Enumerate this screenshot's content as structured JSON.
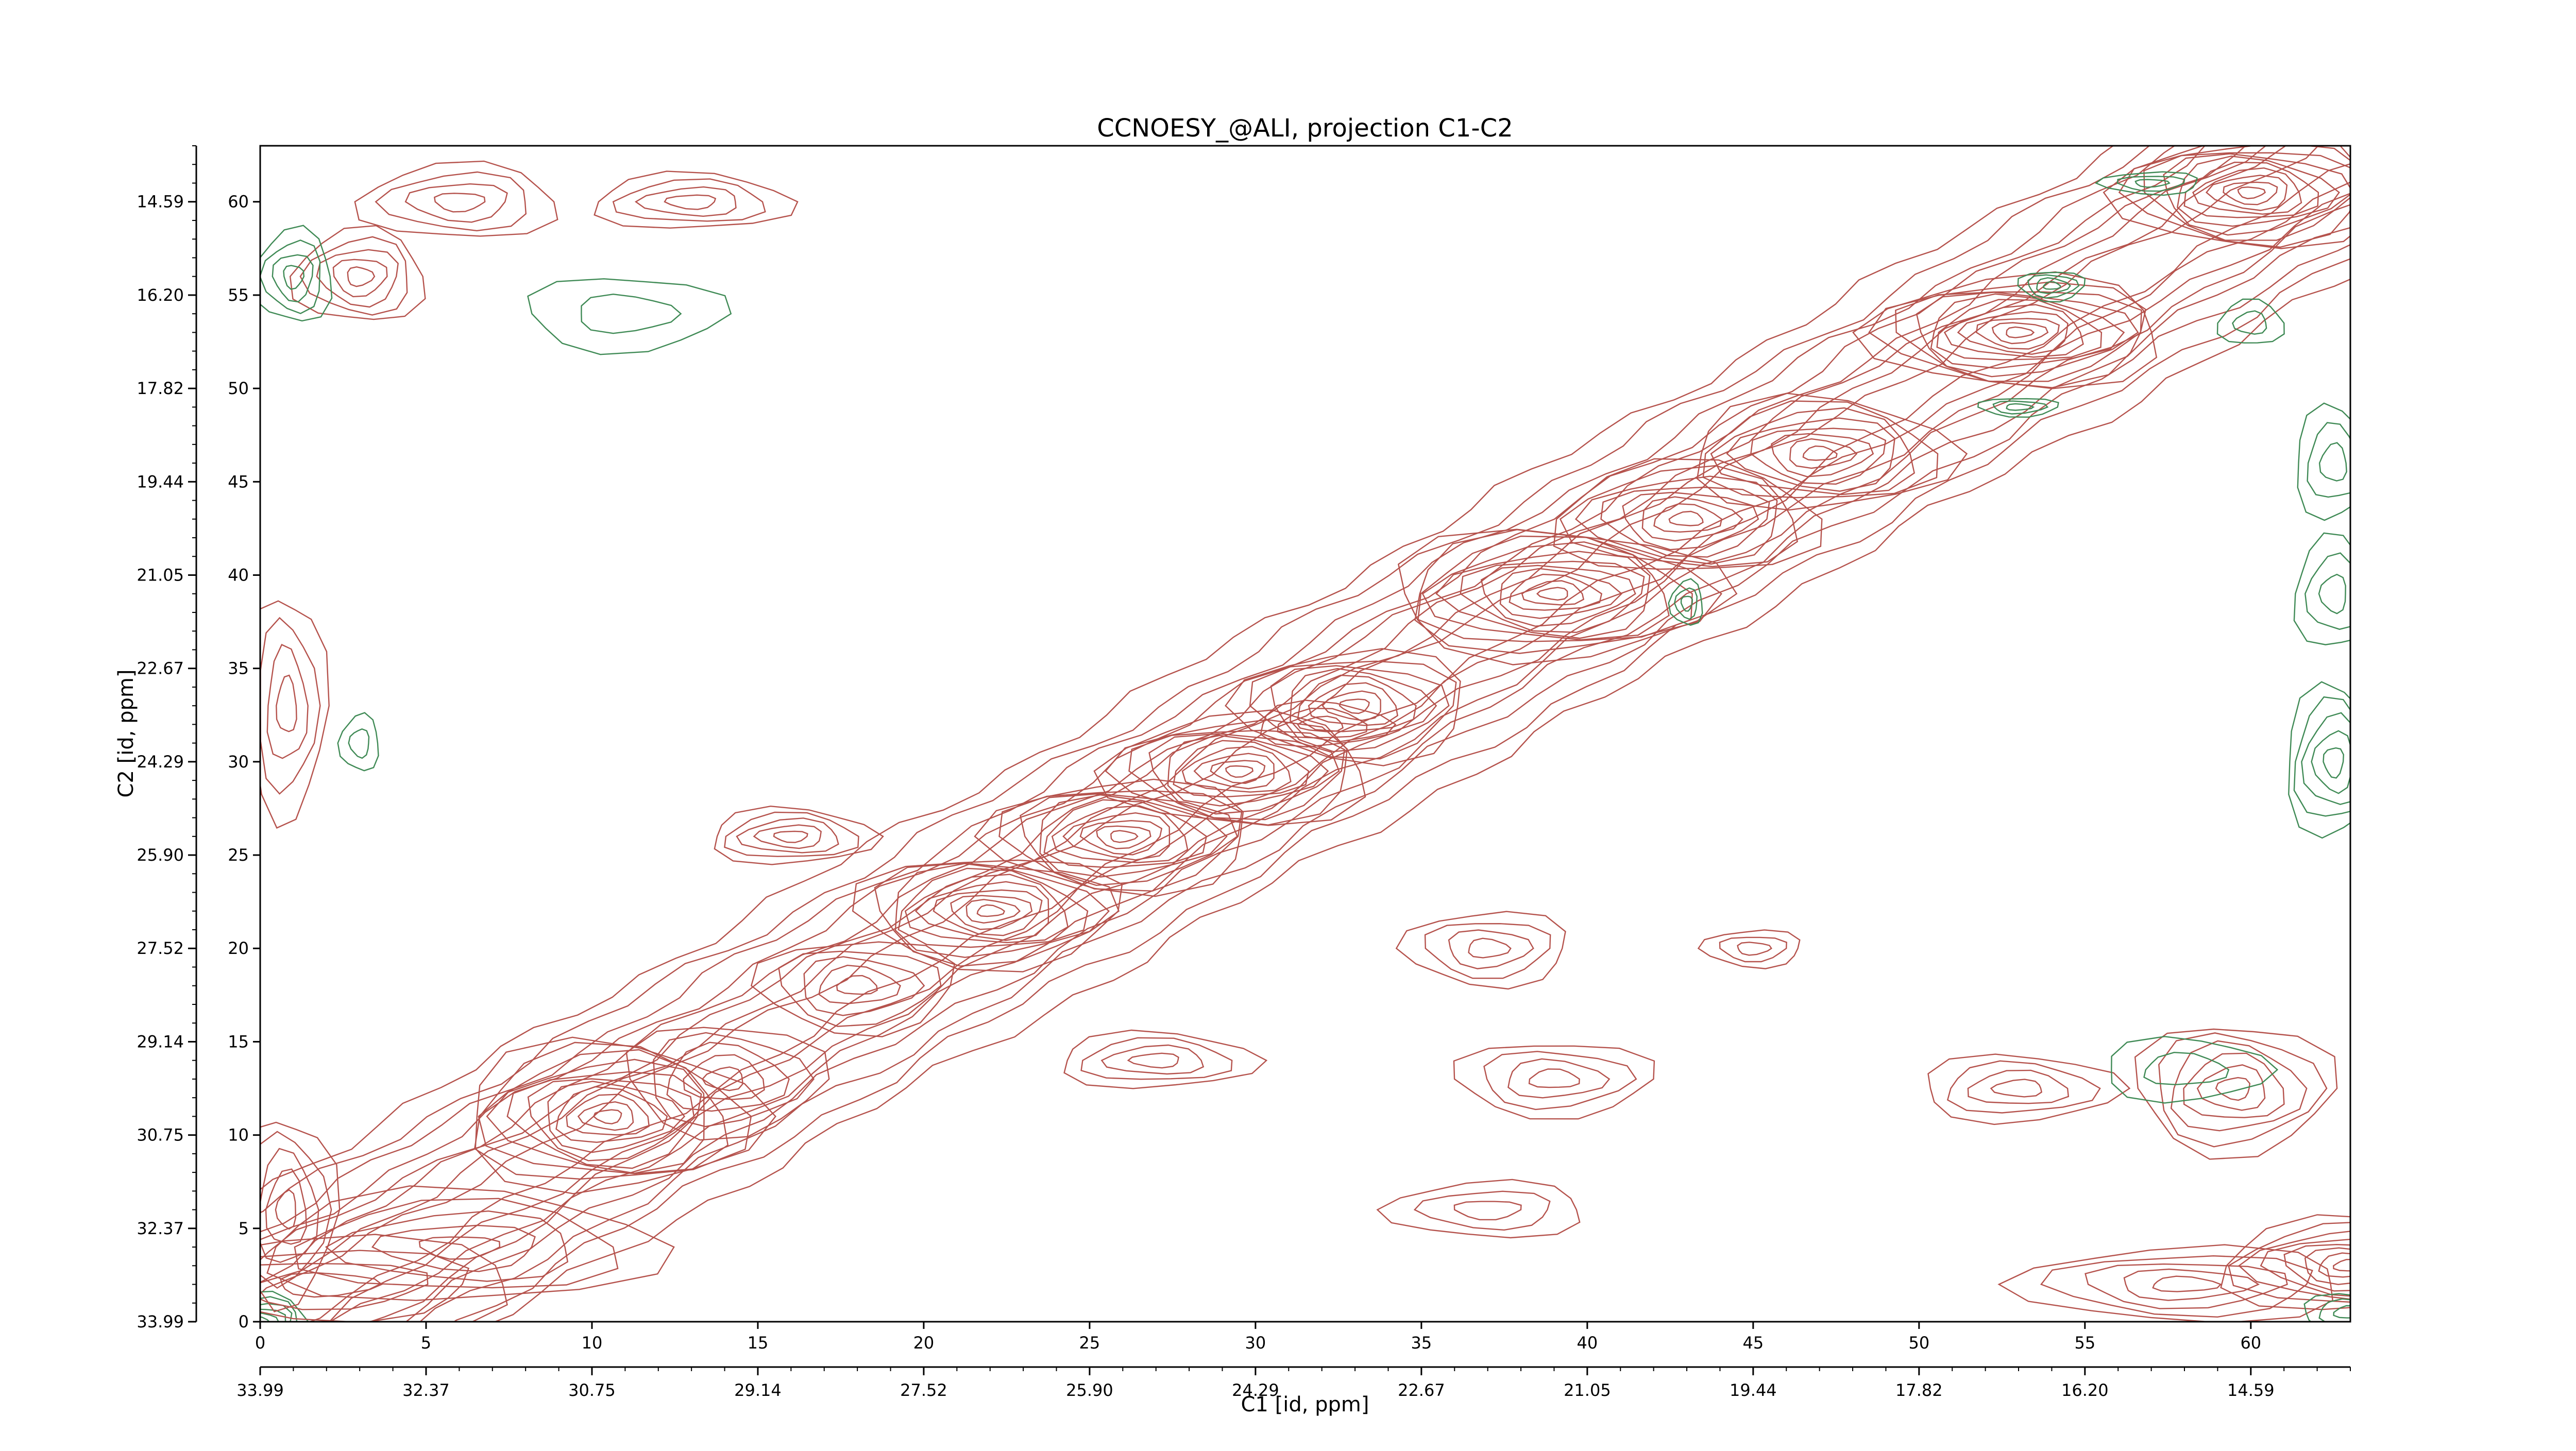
{
  "chart_data": {
    "type": "contour",
    "title": "CCNOESY_@ALI, projection C1-C2",
    "xlabel": "C1 [id, ppm]",
    "ylabel": "C2 [id, ppm]",
    "x_index_range": [
      0,
      63
    ],
    "y_index_range": [
      0,
      63
    ],
    "x_index_ticks": [
      "0",
      "5",
      "10",
      "15",
      "20",
      "25",
      "30",
      "35",
      "40",
      "45",
      "50",
      "55",
      "60"
    ],
    "y_index_ticks": [
      "0",
      "5",
      "10",
      "15",
      "20",
      "25",
      "30",
      "35",
      "40",
      "45",
      "50",
      "55",
      "60"
    ],
    "x_ppm_ticks": [
      "33.99",
      "32.37",
      "30.75",
      "29.14",
      "27.52",
      "25.90",
      "24.29",
      "22.67",
      "21.05",
      "19.44",
      "17.82",
      "16.20",
      "14.59"
    ],
    "y_ppm_ticks": [
      "33.99",
      "32.37",
      "30.75",
      "29.14",
      "27.52",
      "25.90",
      "24.29",
      "22.67",
      "21.05",
      "19.44",
      "17.82",
      "16.20",
      "14.59"
    ],
    "colors": {
      "positive": "#b5524c",
      "negative": "#3f8a55"
    },
    "peaks": [
      {
        "x": 0,
        "y": 0,
        "w": 1.5,
        "h": 1.5,
        "levels": 6,
        "sign": "neg"
      },
      {
        "x": 2,
        "y": 2,
        "w": 6,
        "h": 2.5,
        "levels": 4,
        "sign": "pos"
      },
      {
        "x": 6,
        "y": 4,
        "w": 6,
        "h": 3,
        "levels": 5,
        "sign": "pos"
      },
      {
        "x": 10.5,
        "y": 11,
        "w": 4.5,
        "h": 4,
        "levels": 11,
        "sign": "pos"
      },
      {
        "x": 14,
        "y": 13,
        "w": 3,
        "h": 3,
        "levels": 5,
        "sign": "pos"
      },
      {
        "x": 18,
        "y": 18,
        "w": 3,
        "h": 2.5,
        "levels": 5,
        "sign": "pos"
      },
      {
        "x": 22,
        "y": 22,
        "w": 4,
        "h": 3,
        "levels": 10,
        "sign": "pos"
      },
      {
        "x": 26,
        "y": 26,
        "w": 4,
        "h": 3,
        "levels": 10,
        "sign": "pos"
      },
      {
        "x": 29.5,
        "y": 29.5,
        "w": 4,
        "h": 3,
        "levels": 10,
        "sign": "pos"
      },
      {
        "x": 33,
        "y": 33,
        "w": 3.5,
        "h": 3,
        "levels": 8,
        "sign": "pos"
      },
      {
        "x": 39,
        "y": 39,
        "w": 5,
        "h": 3.5,
        "levels": 11,
        "sign": "pos"
      },
      {
        "x": 43,
        "y": 43,
        "w": 4,
        "h": 3,
        "levels": 8,
        "sign": "pos"
      },
      {
        "x": 47,
        "y": 46.5,
        "w": 4,
        "h": 3,
        "levels": 8,
        "sign": "pos"
      },
      {
        "x": 53,
        "y": 53,
        "w": 4.5,
        "h": 3,
        "levels": 11,
        "sign": "pos"
      },
      {
        "x": 60,
        "y": 60.5,
        "w": 4,
        "h": 3,
        "levels": 10,
        "sign": "pos"
      },
      {
        "x": 16,
        "y": 26,
        "w": 2.5,
        "h": 1.5,
        "levels": 5,
        "sign": "pos"
      },
      {
        "x": 27,
        "y": 14,
        "w": 3,
        "h": 1.5,
        "levels": 4,
        "sign": "pos"
      },
      {
        "x": 32,
        "y": 32,
        "w": 2,
        "h": 1.2,
        "levels": 3,
        "sign": "pos"
      },
      {
        "x": 39,
        "y": 13,
        "w": 3,
        "h": 2,
        "levels": 4,
        "sign": "pos"
      },
      {
        "x": 37,
        "y": 20,
        "w": 2.5,
        "h": 2,
        "levels": 4,
        "sign": "pos"
      },
      {
        "x": 45,
        "y": 20,
        "w": 1.5,
        "h": 1,
        "levels": 3,
        "sign": "pos"
      },
      {
        "x": 37,
        "y": 6,
        "w": 3,
        "h": 1.5,
        "levels": 3,
        "sign": "pos"
      },
      {
        "x": 59.5,
        "y": 12.5,
        "w": 3,
        "h": 3.5,
        "levels": 6,
        "sign": "pos"
      },
      {
        "x": 53,
        "y": 12.5,
        "w": 3,
        "h": 1.8,
        "levels": 4,
        "sign": "pos"
      },
      {
        "x": 63,
        "y": 3,
        "w": 4,
        "h": 2.5,
        "levels": 8,
        "sign": "pos"
      },
      {
        "x": 58,
        "y": 2,
        "w": 5,
        "h": 2,
        "levels": 5,
        "sign": "pos"
      },
      {
        "x": 3,
        "y": 56,
        "w": 2,
        "h": 2.5,
        "levels": 5,
        "sign": "pos"
      },
      {
        "x": 6,
        "y": 60,
        "w": 3,
        "h": 2,
        "levels": 4,
        "sign": "pos"
      },
      {
        "x": 13,
        "y": 60,
        "w": 3,
        "h": 1.5,
        "levels": 4,
        "sign": "pos"
      },
      {
        "x": 0.8,
        "y": 6,
        "w": 1.5,
        "h": 5,
        "levels": 5,
        "sign": "pos"
      },
      {
        "x": 0.8,
        "y": 33,
        "w": 1.2,
        "h": 6,
        "levels": 4,
        "sign": "pos"
      },
      {
        "x": 58,
        "y": 13.5,
        "w": 2.5,
        "h": 1.7,
        "levels": 2,
        "sign": "neg"
      },
      {
        "x": 11,
        "y": 54,
        "w": 3,
        "h": 2,
        "levels": 2,
        "sign": "neg"
      },
      {
        "x": 1,
        "y": 56,
        "w": 1.2,
        "h": 2.5,
        "levels": 4,
        "sign": "neg"
      },
      {
        "x": 62.5,
        "y": 30,
        "w": 1.5,
        "h": 4,
        "levels": 5,
        "sign": "neg"
      },
      {
        "x": 62.5,
        "y": 39,
        "w": 1.2,
        "h": 3,
        "levels": 3,
        "sign": "neg"
      },
      {
        "x": 62.5,
        "y": 46,
        "w": 1.2,
        "h": 3,
        "levels": 3,
        "sign": "neg"
      },
      {
        "x": 54,
        "y": 55.5,
        "w": 1,
        "h": 0.8,
        "levels": 4,
        "sign": "neg"
      },
      {
        "x": 53,
        "y": 49,
        "w": 1.2,
        "h": 0.5,
        "levels": 3,
        "sign": "neg"
      },
      {
        "x": 57,
        "y": 61,
        "w": 1.5,
        "h": 0.6,
        "levels": 3,
        "sign": "neg"
      },
      {
        "x": 43,
        "y": 38.5,
        "w": 0.5,
        "h": 1.2,
        "levels": 3,
        "sign": "neg"
      },
      {
        "x": 3,
        "y": 31,
        "w": 0.6,
        "h": 1.5,
        "levels": 2,
        "sign": "neg"
      },
      {
        "x": 60,
        "y": 53.5,
        "w": 1,
        "h": 1.2,
        "levels": 2,
        "sign": "neg"
      },
      {
        "x": 63,
        "y": 0.5,
        "w": 1.5,
        "h": 1,
        "levels": 3,
        "sign": "neg"
      }
    ]
  }
}
